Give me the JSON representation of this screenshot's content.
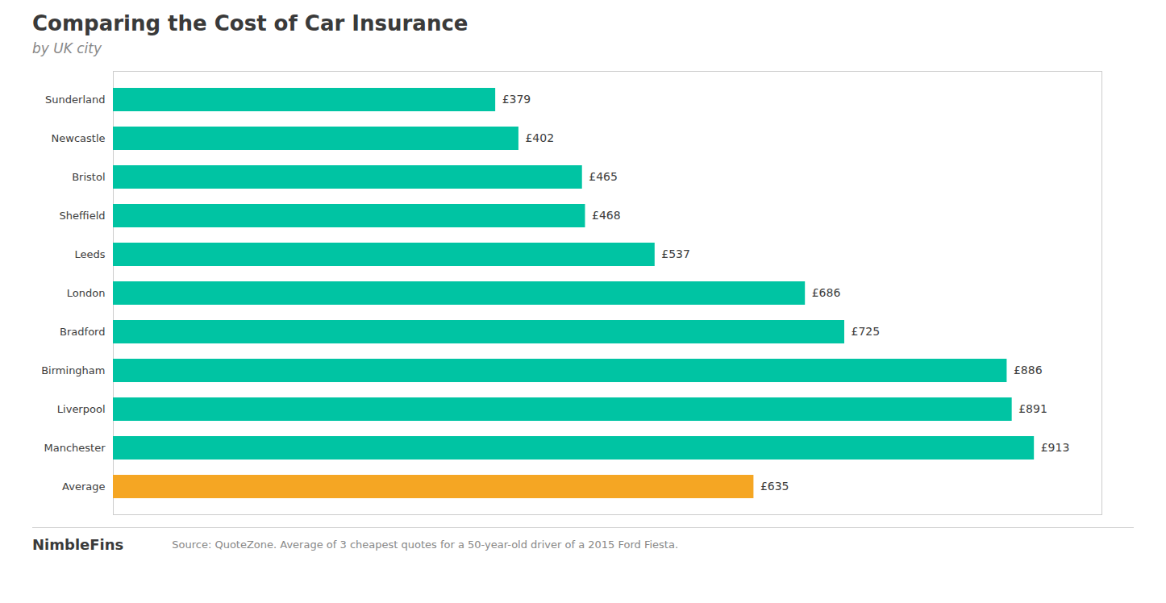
{
  "chart_data": {
    "type": "bar",
    "orientation": "horizontal",
    "title": "Comparing the Cost of Car Insurance",
    "subtitle": "by UK city",
    "categories": [
      "Sunderland",
      "Newcastle",
      "Bristol",
      "Sheffield",
      "Leeds",
      "London",
      "Bradford",
      "Birmingham",
      "Liverpool",
      "Manchester",
      "Average"
    ],
    "values": [
      379,
      402,
      465,
      468,
      537,
      686,
      725,
      886,
      891,
      913,
      635
    ],
    "value_labels": [
      "£379",
      "£402",
      "£465",
      "£468",
      "£537",
      "£686",
      "£725",
      "£886",
      "£891",
      "£913",
      "£635"
    ],
    "colors": [
      "#00C4A3",
      "#00C4A3",
      "#00C4A3",
      "#00C4A3",
      "#00C4A3",
      "#00C4A3",
      "#00C4A3",
      "#00C4A3",
      "#00C4A3",
      "#00C4A3",
      "#F5A623"
    ],
    "xlim": [
      0,
      980
    ],
    "tick_labels": "y",
    "data_labels": true,
    "grid": false,
    "annotations": [
      "NimbleFins",
      "Source: QuoteZone. Average of 3 cheapest quotes for a 50-year-old driver of a 2015 Ford Fiesta."
    ]
  }
}
